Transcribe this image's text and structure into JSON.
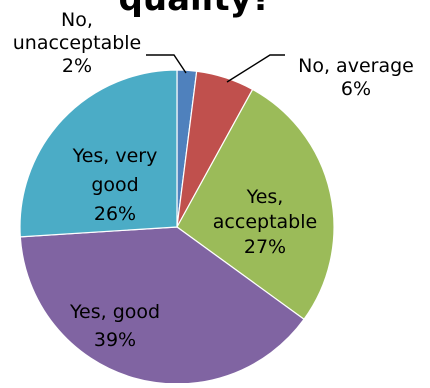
{
  "chart_data": {
    "type": "pie",
    "title": "quality?",
    "slices": [
      {
        "name": "No, unacceptable",
        "label_lines": [
          "No,",
          "unacceptable"
        ],
        "value": 2,
        "percent_label": "2%",
        "color": "#4F81BD"
      },
      {
        "name": "No, average",
        "label_lines": [
          "No, average"
        ],
        "value": 6,
        "percent_label": "6%",
        "color": "#C0504D"
      },
      {
        "name": "Yes, acceptable",
        "label_lines": [
          "Yes,",
          "acceptable"
        ],
        "value": 27,
        "percent_label": "27%",
        "color": "#9BBB59"
      },
      {
        "name": "Yes, good",
        "label_lines": [
          "Yes, good"
        ],
        "value": 39,
        "percent_label": "39%",
        "color": "#8064A2"
      },
      {
        "name": "Yes, very good",
        "label_lines": [
          "Yes, very",
          "good"
        ],
        "value": 26,
        "percent_label": "26%",
        "color": "#4BACC6"
      }
    ],
    "start_angle_deg": 0,
    "direction": "clockwise",
    "legend": "none"
  }
}
